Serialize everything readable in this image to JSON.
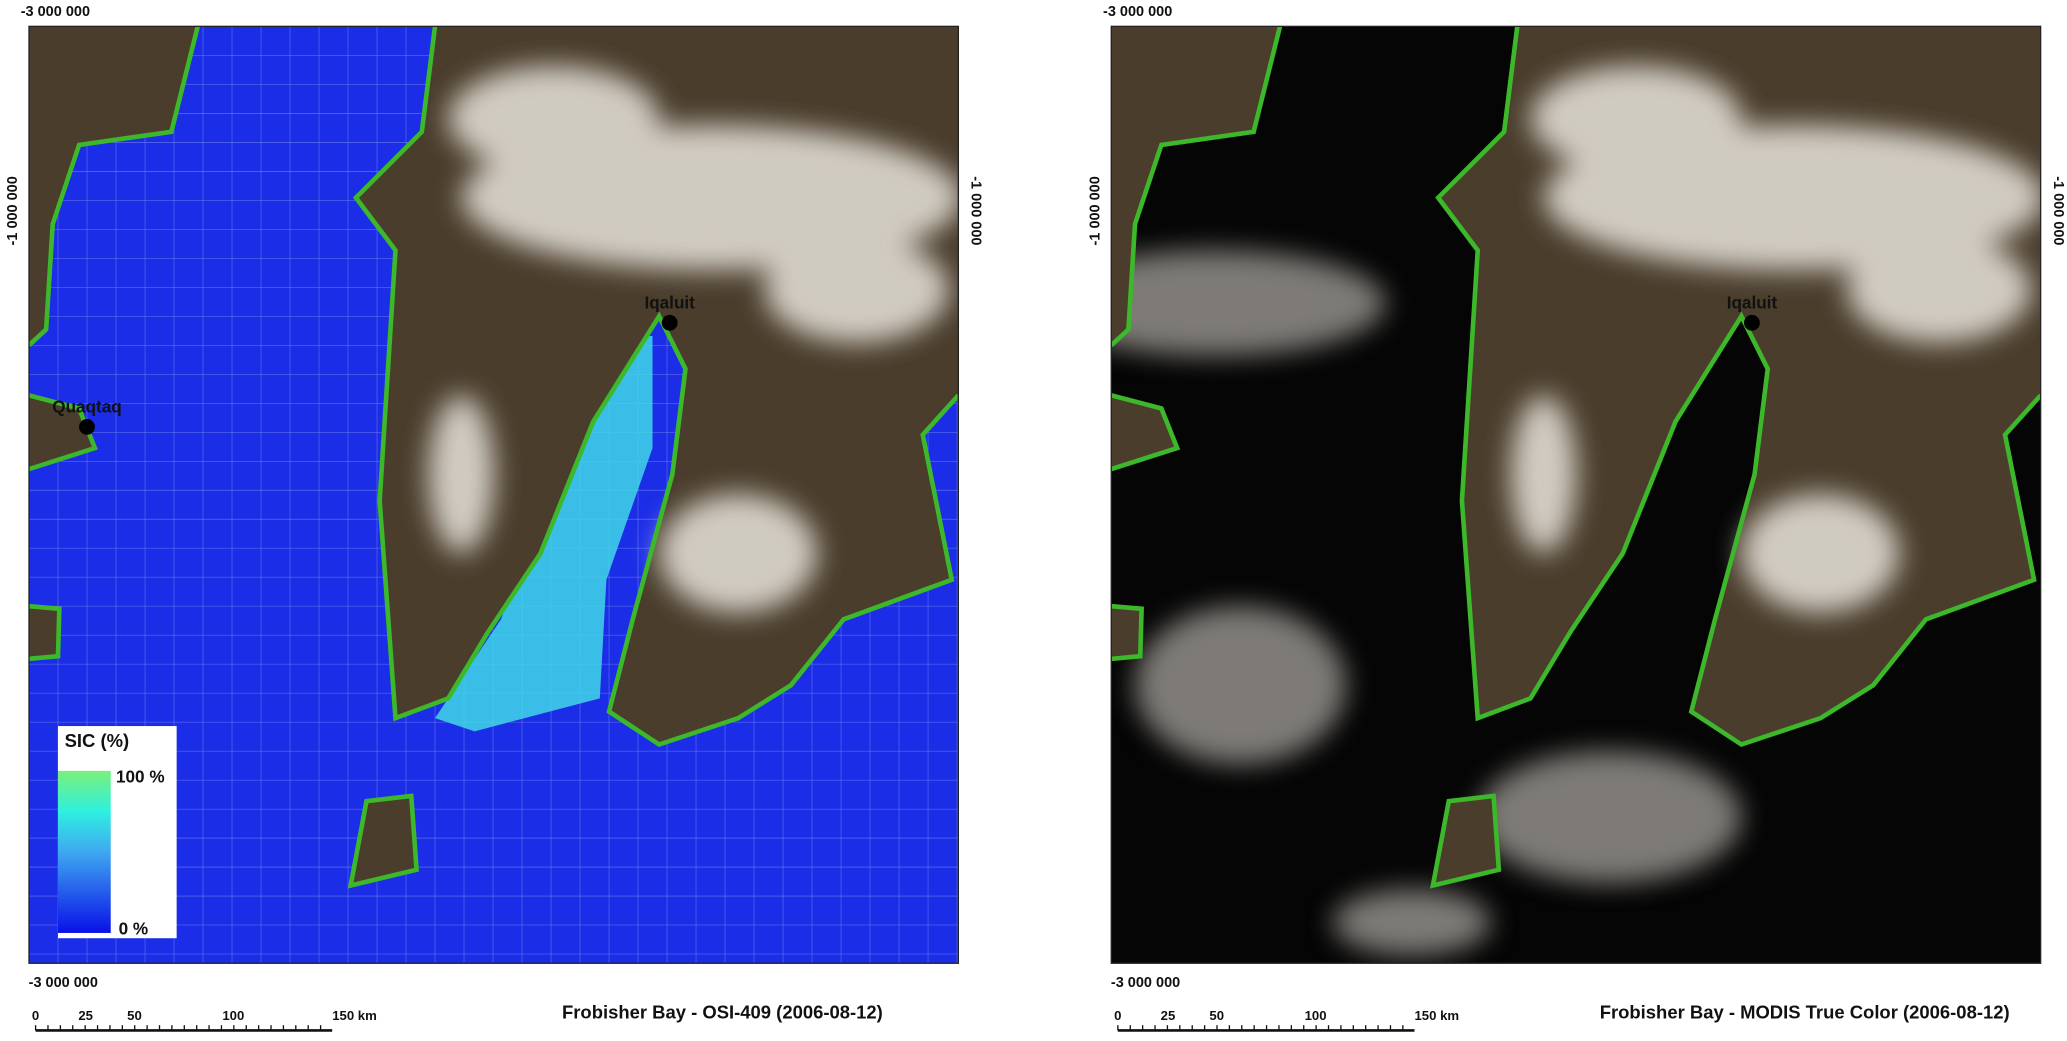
{
  "panels": [
    {
      "title": "Frobisher Bay - OSI-409 (2006-08-12)",
      "ticks": {
        "top": "-3 000 000",
        "left": "-1 000 000",
        "right": "-1 000 000",
        "bottom": "-3 000 000"
      },
      "places": [
        "Iqaluit",
        "Quaqtaq"
      ],
      "legend": {
        "title": "SIC (%)",
        "max": "100 %",
        "min": "0 %"
      },
      "scale_bar": [
        "0",
        "25",
        "50",
        "100",
        "150 km"
      ]
    },
    {
      "title": "Frobisher Bay - MODIS True Color (2006-08-12)",
      "ticks": {
        "top": "-3 000 000",
        "left": "-1 000 000",
        "right": "-1 000 000",
        "bottom": "-3 000 000"
      },
      "places": [
        "Iqaluit"
      ],
      "scale_bar": [
        "0",
        "25",
        "50",
        "100",
        "150 km"
      ]
    }
  ]
}
